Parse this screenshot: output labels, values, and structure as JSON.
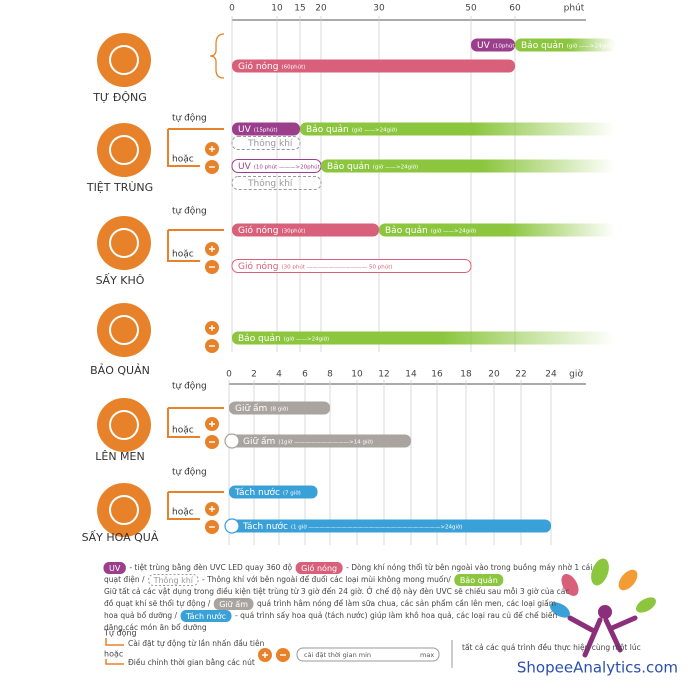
{
  "axes": [
    {
      "unit": "phút",
      "ticks": [
        0,
        10,
        15,
        20,
        30,
        50,
        60
      ]
    },
    {
      "unit": "giờ",
      "ticks": [
        0,
        2,
        4,
        6,
        8,
        10,
        12,
        14,
        16,
        18,
        20,
        22,
        24
      ]
    }
  ],
  "modes": [
    {
      "name": "TỰ ĐỘNG",
      "axis": 0,
      "rows": [
        {
          "bars": [
            {
              "label": "UV",
              "note": "(10phút)",
              "start": 50,
              "end": 60,
              "color": "#9b3f8c"
            },
            {
              "label": "Bảo quản",
              "note": "(giờ ——>24giờ)",
              "start": 60,
              "color": "#8cc63f"
            }
          ]
        },
        {
          "bars": [
            {
              "label": "Gió nóng",
              "note": "(60phút)",
              "start": 0,
              "end": 60,
              "color": "#d9607a"
            }
          ]
        }
      ]
    },
    {
      "name": "TIỆT TRÙNG",
      "axis": 0,
      "auto": "tự động",
      "or": "hoặc",
      "rows": [
        {
          "bars": [
            {
              "label": "UV",
              "note": "(15phút)",
              "start": 0,
              "end": 15,
              "color": "#9b3f8c"
            },
            {
              "label": "Bảo quản",
              "note": "(giờ ——>24giờ)",
              "start": 15,
              "color": "#8cc63f"
            }
          ]
        },
        {
          "bars": [
            {
              "label": "Thông khí",
              "start": 0,
              "end": 15,
              "color": "#9a9a9a",
              "style": "dashed"
            }
          ]
        },
        {
          "bars": [
            {
              "label": "UV",
              "note": "(10 phút ———>20phút)",
              "start": 0,
              "end": 20,
              "color": "#9b3f8c",
              "style": "outline"
            },
            {
              "label": "Bảo quản",
              "note": "(giờ ——>24giờ)",
              "start": 20,
              "color": "#8cc63f"
            }
          ]
        },
        {
          "bars": [
            {
              "label": "Thông khí",
              "start": 0,
              "end": 20,
              "color": "#9a9a9a",
              "style": "dashed"
            }
          ]
        }
      ]
    },
    {
      "name": "SẤY KHÔ",
      "axis": 0,
      "auto": "tự động",
      "or": "hoặc",
      "rows": [
        {
          "bars": [
            {
              "label": "Gió nóng",
              "note": "(30phút)",
              "start": 0,
              "end": 30,
              "color": "#d9607a"
            },
            {
              "label": "Bảo quản",
              "note": "(giờ ——>24giờ)",
              "start": 30,
              "color": "#8cc63f"
            }
          ]
        },
        {
          "bars": [
            {
              "label": "Gió nóng",
              "note": "(30 phút ——————————— 50 phút)",
              "start": 0,
              "end": 50,
              "color": "#d9607a",
              "style": "outline"
            }
          ]
        }
      ]
    },
    {
      "name": "BẢO QUẢN",
      "axis": 0,
      "rows": [
        {
          "bars": [
            {
              "label": "Bảo quản",
              "note": "(giờ ——>24giờ)",
              "start": 0,
              "color": "#8cc63f"
            }
          ]
        }
      ]
    },
    {
      "name": "LÊN MEN",
      "axis": 1,
      "auto": "tự động",
      "or": "hoặc",
      "rows": [
        {
          "bars": [
            {
              "label": "Giữ ấm",
              "note": "(8 giờ)",
              "start": 0,
              "end": 8,
              "color": "#a9a49f"
            }
          ]
        },
        {
          "bars": [
            {
              "label": "Giữ ấm",
              "note": "(1giờ ——————————>14 giờ)",
              "start": 0,
              "end": 14,
              "color": "#a9a49f",
              "style": "knob"
            }
          ]
        }
      ]
    },
    {
      "name": "SẤY HOA QUẢ",
      "axis": 1,
      "auto": "tự động",
      "or": "hoặc",
      "rows": [
        {
          "bars": [
            {
              "label": "Tách nước",
              "note": "(7 giờ)",
              "start": 0,
              "end": 7,
              "color": "#3aa0d8"
            }
          ]
        },
        {
          "bars": [
            {
              "label": "Tách nước",
              "note": "(1 giờ ————————————————————————>24giờ)",
              "start": 0,
              "end": 24,
              "color": "#3aa0d8",
              "style": "knob"
            }
          ]
        }
      ]
    }
  ],
  "legend": [
    [
      {
        "chip": "UV",
        "color": "#9b3f8c"
      },
      {
        "text": "- tiệt trùng bằng đèn UVC LED quay 360 độ"
      },
      {
        "chip": "Gió nóng",
        "color": "#d9607a"
      },
      {
        "text": "- Dòng khí nóng thổi từ bên ngoài vào trong buồng máy nhờ 1 cái"
      }
    ],
    [
      {
        "text": "quạt điện /"
      },
      {
        "chip": "Thông khí",
        "color": "#9a9a9a"
      },
      {
        "text": "- Thông khí với bên ngoài để đuổi các loại mùi không mong muốn/"
      },
      {
        "chip": "Bảo quản",
        "color": "#8cc63f"
      }
    ],
    [
      {
        "text": "Giữ tất cả các vật dụng trong điều kiện tiệt trùng từ 3 giờ đến 24 giờ. Ở chế độ này đèn UVC sẽ chiếu sau mỗi 3 giờ của các"
      }
    ],
    [
      {
        "text": "đồ quạt khí sẽ thổi tự động /"
      },
      {
        "chip": "Giữ ấm",
        "color": "#a9a49f"
      },
      {
        "text": "quá trình hâm nóng để làm sữa chua, các sản phẩm cần lên men, các loại giấm"
      }
    ],
    [
      {
        "text": "hoa quả bổ dưỡng /"
      },
      {
        "chip": "Tách nước",
        "color": "#3aa0d8"
      },
      {
        "text": "- quá trình sấy hoa quả (tách nước) giúp làm khô hoa quả, các loại rau củ để chế biến"
      }
    ],
    [
      {
        "text": "dăng các món ăn bổ dưỡng"
      }
    ]
  ],
  "help": {
    "auto": "Tự động",
    "auto_desc": "Cài đặt tự động từ lần nhấn đầu tiên",
    "or": "hoặc",
    "or_desc": "Điều chỉnh thời gian bằng các nút",
    "min": "cài đặt thời gian min",
    "max": "max",
    "together": "tất cả các quá trình đều thực hiện cùng một lúc"
  },
  "watermark": "ShopeeAnalytics.com"
}
